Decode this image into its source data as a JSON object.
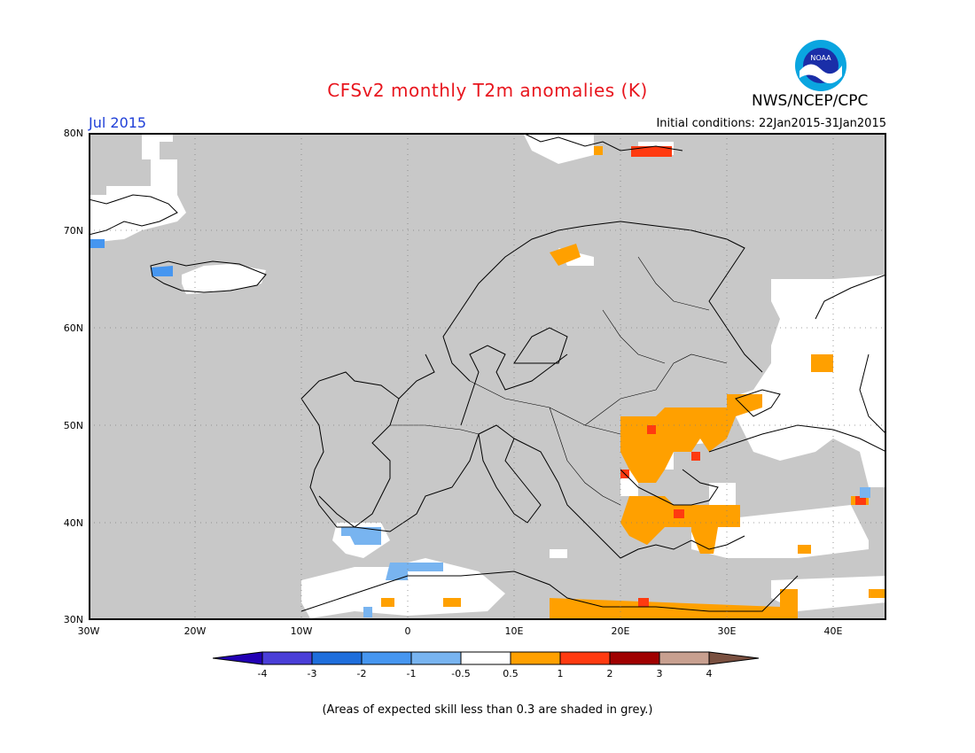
{
  "header": {
    "title": "CFSv2 monthly T2m anomalies (K)",
    "period": "Jul 2015",
    "initial_conditions": "Initial conditions: 22Jan2015-31Jan2015",
    "org": "NWS/NCEP/CPC",
    "logo_text": "NOAA"
  },
  "map": {
    "lon_range": [
      -30,
      45
    ],
    "lat_range": [
      30,
      80
    ],
    "lat_labels": [
      "80N",
      "70N",
      "60N",
      "50N",
      "40N",
      "30N"
    ],
    "lon_labels": [
      "30W",
      "20W",
      "10W",
      "0",
      "10E",
      "20E",
      "30E",
      "40E"
    ],
    "colors": {
      "grey": "#c8c8c8",
      "white": "#ffffff",
      "orange": "#ffa000",
      "red_orange": "#ff3a10",
      "light_blue": "#78b4f0",
      "mid_blue": "#4696f0"
    }
  },
  "colorbar": {
    "colors": [
      "#2200b4",
      "#4a3ed8",
      "#1e6edc",
      "#4696f0",
      "#78b4f0",
      "#ffffff",
      "#ffa000",
      "#ff3a10",
      "#a00000",
      "#c8a090",
      "#7a5040"
    ],
    "labels": [
      "-4",
      "-3",
      "-2",
      "-1",
      "-0.5",
      "0.5",
      "1",
      "2",
      "3",
      "4"
    ]
  },
  "footnote": "(Areas of expected skill less than 0.3 are shaded in grey.)"
}
